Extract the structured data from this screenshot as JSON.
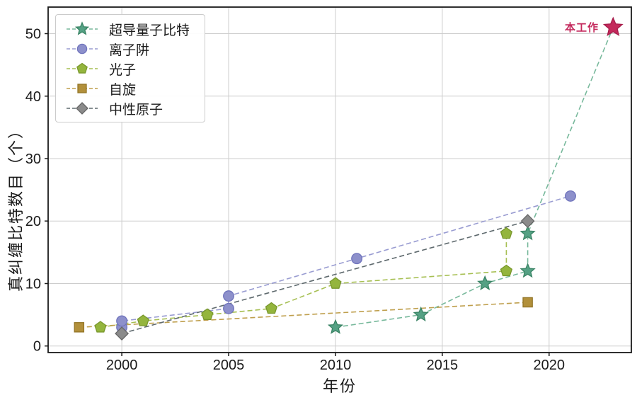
{
  "chart_data": {
    "type": "scatter",
    "title": "",
    "xlabel": "年份",
    "ylabel": "真纠缠比特数目（个）",
    "xlim": [
      1996.55,
      2023.85
    ],
    "ylim": [
      -1.05,
      54.25
    ],
    "xticks": [
      2000,
      2005,
      2010,
      2015,
      2020
    ],
    "yticks": [
      0,
      10,
      20,
      30,
      40,
      50
    ],
    "grid": true,
    "grid_color": "#cdcdcd",
    "axis_color": "#1a1a1a",
    "legend_position": "upper-left",
    "series": [
      {
        "key": "superconducting",
        "name": "超导量子比特",
        "marker": "star",
        "fill": "#55a184",
        "edge": "#3a8465",
        "line": "#78b99c",
        "points": [
          [
            2010,
            3
          ],
          [
            2014,
            5
          ],
          [
            2017,
            10
          ],
          [
            2019,
            12
          ],
          [
            2019,
            18
          ]
        ],
        "line_extends_to": [
          2023,
          51
        ]
      },
      {
        "key": "ion-trap",
        "name": "离子阱",
        "marker": "circle",
        "fill": "#8d90cb",
        "edge": "#6f73bc",
        "line": "#989bd1",
        "points": [
          [
            2000,
            3
          ],
          [
            2000,
            4
          ],
          [
            2005,
            6
          ],
          [
            2005,
            8
          ],
          [
            2011,
            14
          ],
          [
            2021,
            24
          ]
        ]
      },
      {
        "key": "photon",
        "name": "光子",
        "marker": "pentagon",
        "fill": "#94b53d",
        "edge": "#78972c",
        "line": "#a6bf52",
        "points": [
          [
            1999,
            3
          ],
          [
            2001,
            4
          ],
          [
            2004,
            5
          ],
          [
            2007,
            6
          ],
          [
            2010,
            10
          ],
          [
            2018,
            12
          ],
          [
            2018,
            18
          ]
        ]
      },
      {
        "key": "spin",
        "name": "自旋",
        "marker": "square",
        "fill": "#b2903b",
        "edge": "#937527",
        "line": "#bf9f4d",
        "points": [
          [
            1998,
            3
          ],
          [
            2019,
            7
          ]
        ]
      },
      {
        "key": "neutral-atom",
        "name": "中性原子",
        "marker": "diamond",
        "fill": "#8b8b8b",
        "edge": "#666666",
        "line": "#5f6a6e",
        "points": [
          [
            2000,
            2
          ],
          [
            2019,
            20
          ]
        ]
      }
    ],
    "highlight": {
      "label": "本工作",
      "x": 2023,
      "y": 51,
      "marker": "star",
      "fill": "#c42a5c",
      "edge": "#a61c4a",
      "label_color": "#c4295c"
    }
  }
}
